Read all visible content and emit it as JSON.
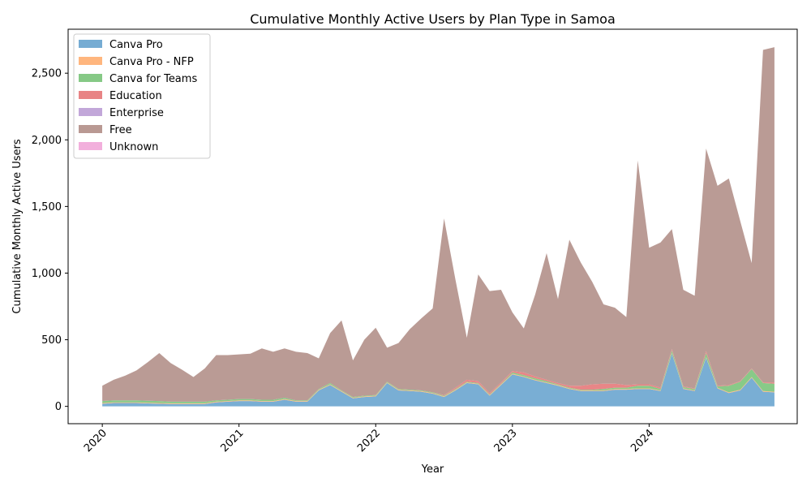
{
  "chart_data": {
    "type": "area",
    "stacked": true,
    "title": "Cumulative Monthly Active Users by Plan Type in Samoa",
    "xlabel": "Year",
    "ylabel": "Cumulative Monthly Active Users",
    "xlim": [
      2019.75,
      2025.0833
    ],
    "ylim": [
      -130,
      2830
    ],
    "x_ticks": [
      {
        "value": 2020,
        "label": "2020"
      },
      {
        "value": 2021,
        "label": "2021"
      },
      {
        "value": 2022,
        "label": "2022"
      },
      {
        "value": 2023,
        "label": "2023"
      },
      {
        "value": 2024,
        "label": "2024"
      }
    ],
    "y_ticks": [
      {
        "value": 0,
        "label": "0"
      },
      {
        "value": 500,
        "label": "500"
      },
      {
        "value": 1000,
        "label": "1,000"
      },
      {
        "value": 1500,
        "label": "1,500"
      },
      {
        "value": 2000,
        "label": "2,000"
      },
      {
        "value": 2500,
        "label": "2,500"
      }
    ],
    "x": [
      "2020-01",
      "2020-02",
      "2020-03",
      "2020-04",
      "2020-05",
      "2020-06",
      "2020-07",
      "2020-08",
      "2020-09",
      "2020-10",
      "2020-11",
      "2020-12",
      "2021-01",
      "2021-02",
      "2021-03",
      "2021-04",
      "2021-05",
      "2021-06",
      "2021-07",
      "2021-08",
      "2021-09",
      "2021-10",
      "2021-11",
      "2021-12",
      "2022-01",
      "2022-02",
      "2022-03",
      "2022-04",
      "2022-05",
      "2022-06",
      "2022-07",
      "2022-08",
      "2022-09",
      "2022-10",
      "2022-11",
      "2022-12",
      "2023-01",
      "2023-02",
      "2023-03",
      "2023-04",
      "2023-05",
      "2023-06",
      "2023-07",
      "2023-08",
      "2023-09",
      "2023-10",
      "2023-11",
      "2023-12",
      "2024-01",
      "2024-02",
      "2024-03",
      "2024-04",
      "2024-05",
      "2024-06",
      "2024-07",
      "2024-08",
      "2024-09",
      "2024-10",
      "2024-11",
      "2024-12"
    ],
    "series": [
      {
        "name": "Canva Pro",
        "color": "#76acd3",
        "values": [
          20,
          25,
          25,
          25,
          22,
          20,
          18,
          18,
          18,
          18,
          30,
          35,
          40,
          40,
          35,
          35,
          50,
          35,
          35,
          120,
          160,
          110,
          60,
          70,
          75,
          175,
          120,
          115,
          110,
          95,
          70,
          120,
          175,
          165,
          80,
          160,
          240,
          220,
          195,
          175,
          155,
          130,
          115,
          115,
          115,
          125,
          125,
          130,
          130,
          115,
          395,
          130,
          115,
          365,
          135,
          100,
          120,
          215,
          110,
          105
        ]
      },
      {
        "name": "Canva Pro - NFP",
        "color": "#ffb67e",
        "values": [
          5,
          5,
          5,
          5,
          5,
          5,
          5,
          5,
          5,
          5,
          5,
          5,
          5,
          5,
          5,
          5,
          5,
          5,
          5,
          5,
          5,
          5,
          5,
          5,
          5,
          5,
          5,
          5,
          5,
          5,
          5,
          5,
          5,
          5,
          5,
          5,
          5,
          5,
          5,
          5,
          5,
          5,
          5,
          5,
          5,
          5,
          5,
          5,
          5,
          5,
          5,
          5,
          5,
          5,
          5,
          5,
          5,
          5,
          5,
          5
        ]
      },
      {
        "name": "Canva for Teams",
        "color": "#86c986",
        "values": [
          15,
          15,
          15,
          15,
          15,
          15,
          12,
          12,
          12,
          12,
          10,
          10,
          10,
          10,
          10,
          10,
          10,
          5,
          5,
          5,
          10,
          5,
          5,
          5,
          5,
          5,
          5,
          5,
          5,
          5,
          5,
          5,
          5,
          5,
          5,
          5,
          10,
          10,
          10,
          10,
          5,
          5,
          5,
          5,
          10,
          10,
          10,
          20,
          20,
          10,
          20,
          10,
          10,
          30,
          10,
          50,
          60,
          60,
          60,
          60
        ]
      },
      {
        "name": "Education",
        "color": "#e88485",
        "values": [
          0,
          0,
          0,
          0,
          0,
          0,
          0,
          0,
          0,
          0,
          0,
          0,
          0,
          0,
          0,
          0,
          0,
          0,
          0,
          0,
          0,
          0,
          0,
          0,
          0,
          0,
          0,
          0,
          0,
          0,
          5,
          10,
          15,
          15,
          10,
          10,
          10,
          20,
          15,
          10,
          10,
          15,
          30,
          40,
          40,
          30,
          20,
          10,
          10,
          10,
          10,
          5,
          5,
          15,
          5,
          5,
          5,
          5,
          5,
          10
        ]
      },
      {
        "name": "Enterprise",
        "color": "#c2a7d9",
        "values": [
          0,
          0,
          0,
          0,
          0,
          0,
          0,
          0,
          0,
          0,
          0,
          0,
          0,
          0,
          0,
          0,
          0,
          0,
          0,
          0,
          0,
          0,
          0,
          0,
          0,
          0,
          0,
          0,
          0,
          0,
          0,
          0,
          0,
          0,
          0,
          0,
          0,
          0,
          0,
          0,
          0,
          0,
          0,
          0,
          0,
          0,
          0,
          0,
          0,
          0,
          0,
          0,
          0,
          0,
          0,
          0,
          0,
          0,
          0,
          0
        ]
      },
      {
        "name": "Free",
        "color": "#b99993",
        "values": [
          115,
          155,
          185,
          225,
          290,
          360,
          290,
          240,
          185,
          250,
          340,
          335,
          335,
          340,
          385,
          360,
          370,
          365,
          355,
          230,
          375,
          525,
          275,
          420,
          505,
          255,
          345,
          455,
          540,
          630,
          1325,
          810,
          315,
          800,
          765,
          695,
          440,
          330,
          615,
          950,
          630,
          1095,
          925,
          770,
          595,
          570,
          510,
          1680,
          1025,
          1090,
          900,
          725,
          695,
          1520,
          1500,
          1550,
          1200,
          790,
          2495,
          2515
        ]
      },
      {
        "name": "Unknown",
        "color": "#f2afdc",
        "values": [
          0,
          0,
          0,
          0,
          0,
          0,
          0,
          0,
          0,
          0,
          0,
          0,
          0,
          0,
          0,
          0,
          0,
          0,
          0,
          0,
          0,
          0,
          0,
          0,
          0,
          0,
          0,
          0,
          0,
          0,
          0,
          0,
          0,
          0,
          0,
          0,
          0,
          0,
          0,
          0,
          0,
          0,
          0,
          0,
          0,
          0,
          0,
          0,
          0,
          0,
          0,
          0,
          0,
          0,
          0,
          0,
          0,
          0,
          0,
          0
        ]
      }
    ]
  }
}
